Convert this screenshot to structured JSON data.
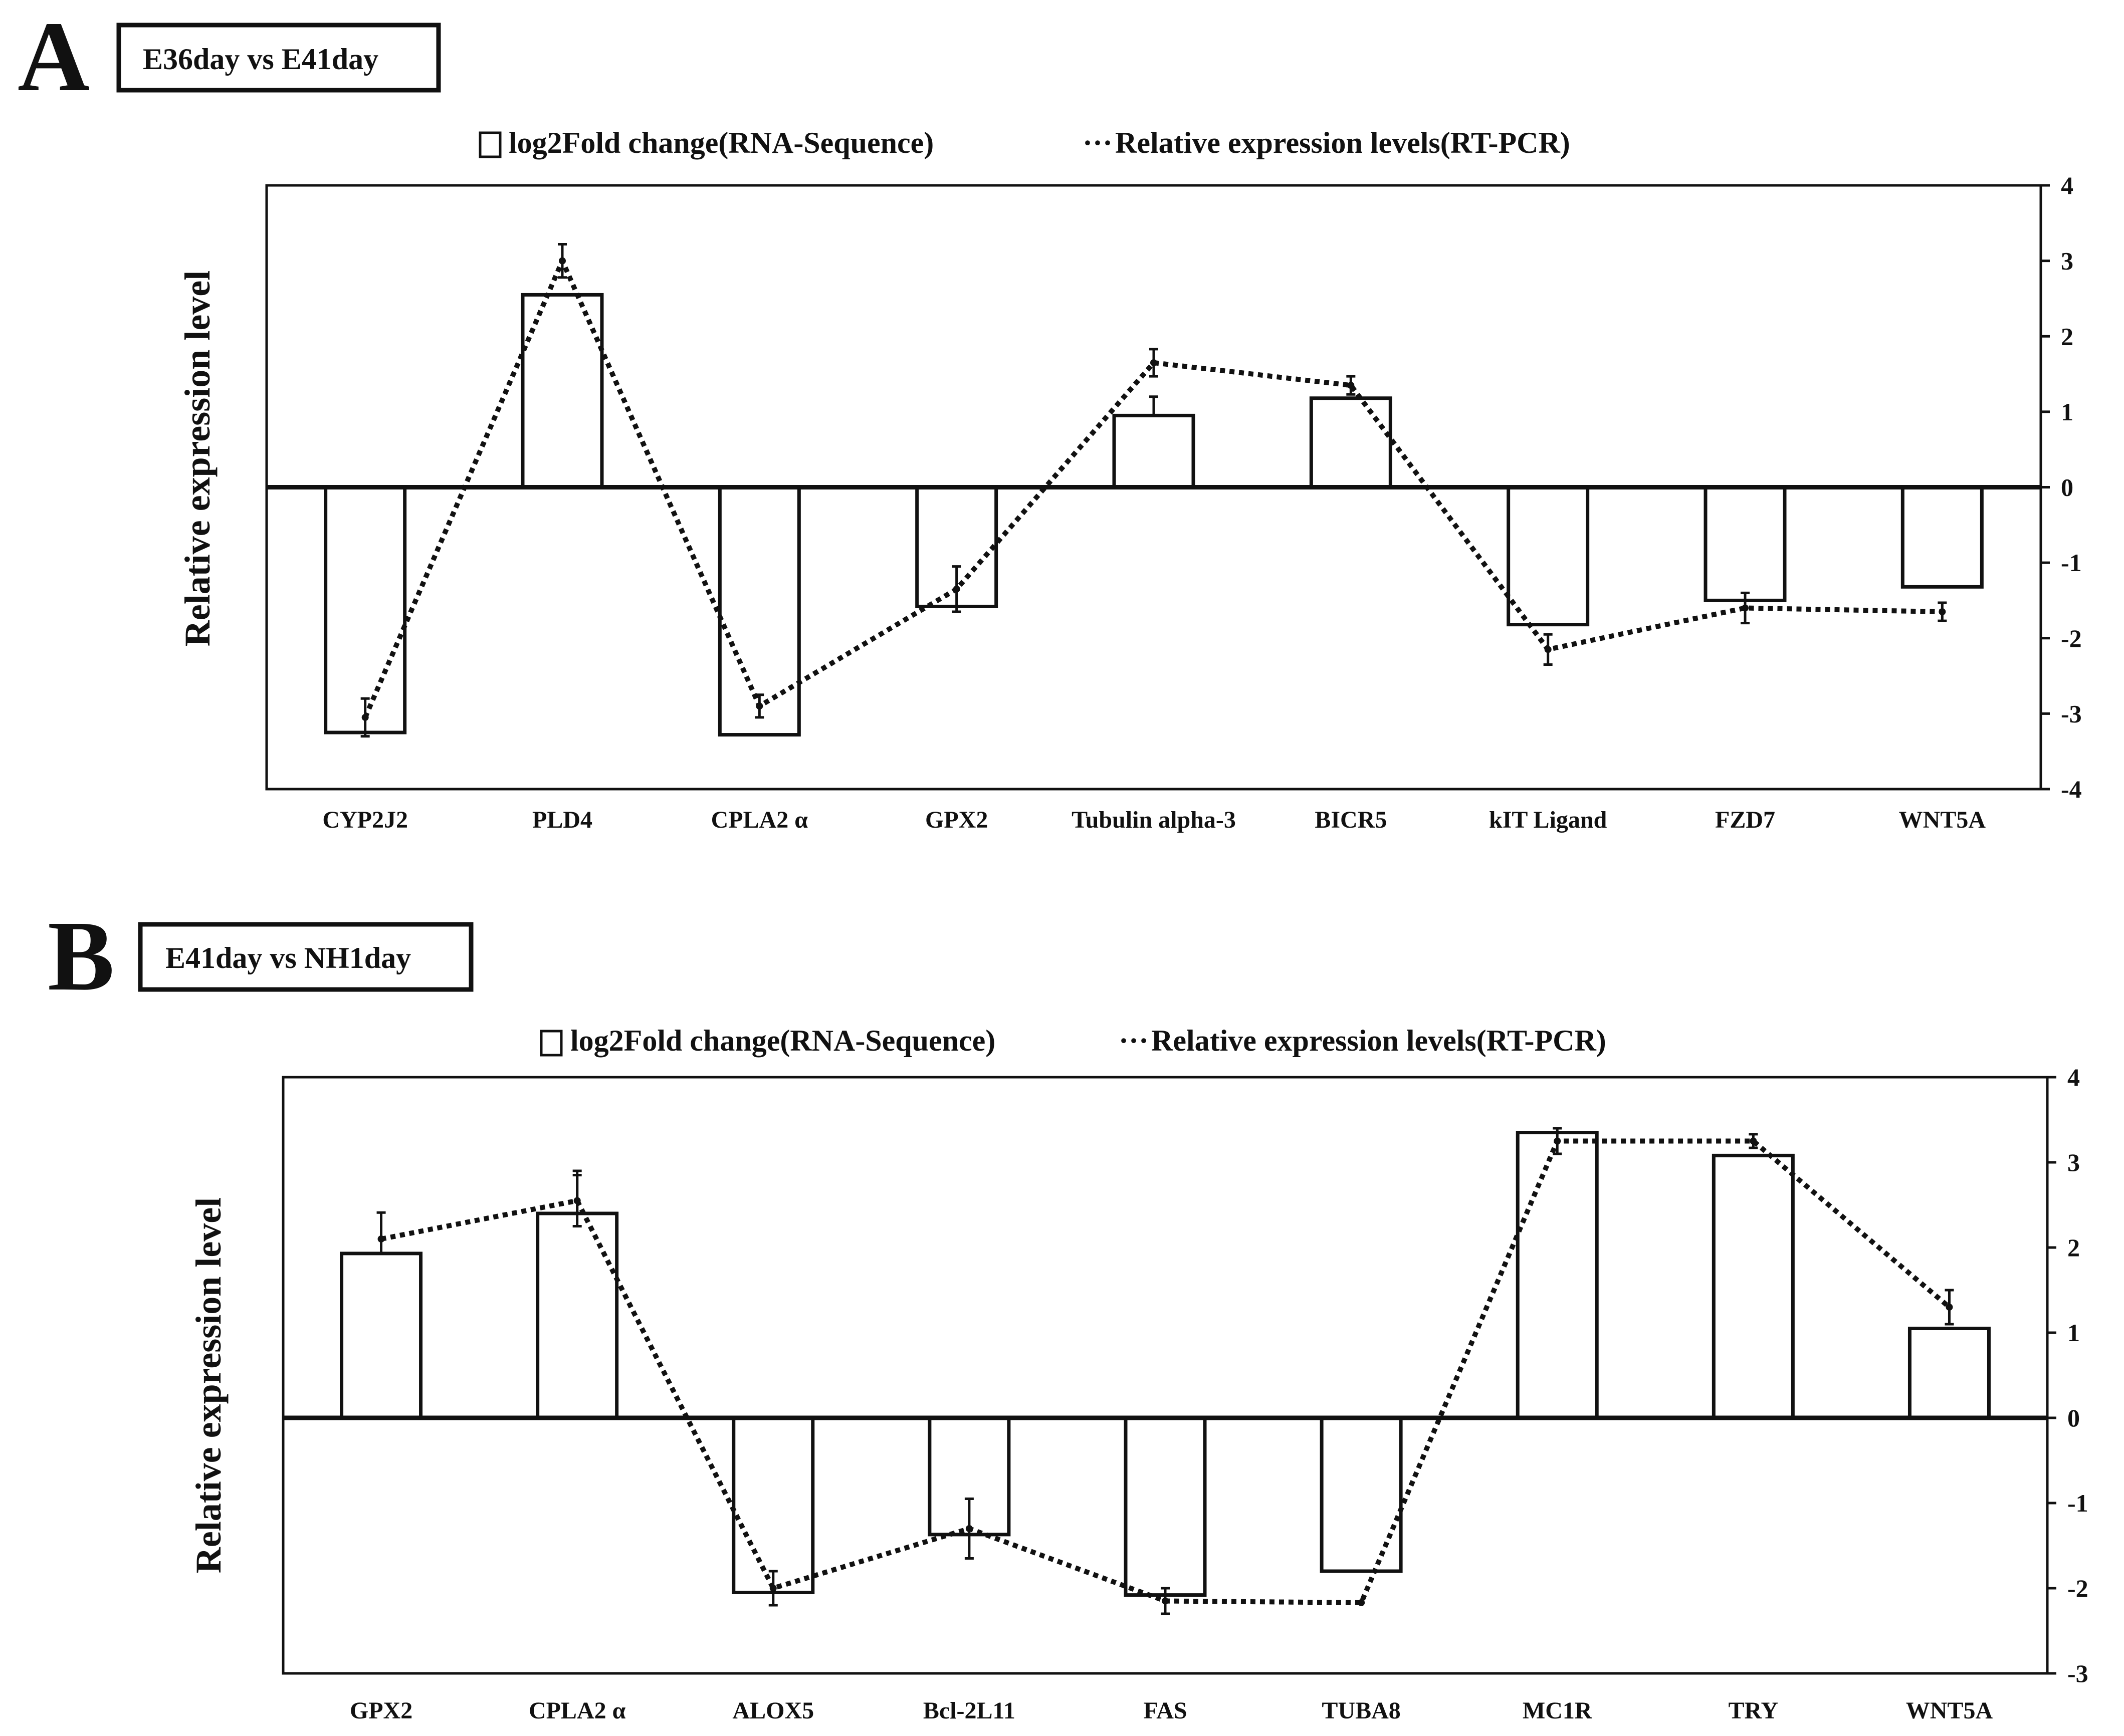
{
  "panels": [
    {
      "panel_letter": "A",
      "comparison_label": "E36day vs E41day",
      "legend": {
        "bars": "log2Fold change(RNA-Sequence)",
        "line_symbol": "···",
        "line": "Relative expression levels(RT-PCR)"
      },
      "colors": {
        "bar_fill": "#ffffff",
        "stroke": "#111111"
      }
    },
    {
      "panel_letter": "B",
      "comparison_label": "E41day vs NH1day",
      "legend": {
        "bars": "log2Fold change(RNA-Sequence)",
        "line_symbol": "···",
        "line": "Relative expression levels(RT-PCR)"
      },
      "colors": {
        "bar_fill": "#ffffff",
        "stroke": "#111111"
      }
    }
  ],
  "chart_data": [
    {
      "type": "bar",
      "title": "E36day vs E41day",
      "ylabel": "Relative expression level",
      "ylim": [
        -4,
        4
      ],
      "yticks": [
        4,
        3,
        2,
        1,
        0,
        -1,
        -2,
        -3,
        -4
      ],
      "axis_side": "right",
      "grid": false,
      "legend_position": "top",
      "categories": [
        "CYP2J2",
        "PLD4",
        "CPLA2 α",
        "GPX2",
        "Tubulin alpha-3",
        "BICR5",
        "kIT Ligand",
        "FZD7",
        "WNT5A"
      ],
      "series": [
        {
          "name": "log2Fold change(RNA-Sequence)",
          "kind": "bar",
          "values": [
            -3.25,
            2.55,
            -3.28,
            -1.58,
            0.95,
            1.18,
            -1.82,
            -1.5,
            -1.32
          ],
          "error": [
            0.0,
            0.0,
            0.0,
            0.0,
            0.25,
            0.0,
            0.0,
            0.0,
            0.0
          ]
        },
        {
          "name": "Relative expression levels(RT-PCR)",
          "kind": "dotted-line",
          "values": [
            -3.05,
            3.0,
            -2.9,
            -1.35,
            1.65,
            1.35,
            -2.15,
            -1.6,
            -1.65
          ],
          "error": [
            0.25,
            0.22,
            0.15,
            0.3,
            0.18,
            0.12,
            0.2,
            0.2,
            0.12
          ]
        }
      ]
    },
    {
      "type": "bar",
      "title": "E41day vs NH1day",
      "ylabel": "Relative expression level",
      "ylim": [
        -3,
        4
      ],
      "yticks": [
        4,
        3,
        2,
        1,
        0,
        -1,
        -2,
        -3
      ],
      "axis_side": "right",
      "grid": false,
      "legend_position": "top",
      "categories": [
        "GPX2",
        "CPLA2 α",
        "ALOX5",
        "Bcl-2L11",
        "FAS",
        "TUBA8",
        "MC1R",
        "TRY",
        "WNT5A"
      ],
      "series": [
        {
          "name": "log2Fold change(RNA-Sequence)",
          "kind": "bar",
          "values": [
            1.93,
            2.4,
            -2.05,
            -1.37,
            -2.08,
            -1.8,
            3.35,
            3.08,
            1.05
          ],
          "error": [
            0.48,
            0.5,
            0.0,
            0.0,
            0.0,
            0.0,
            0.0,
            0.0,
            0.0
          ]
        },
        {
          "name": "Relative expression levels(RT-PCR)",
          "kind": "dotted-line",
          "values": [
            2.1,
            2.55,
            -2.0,
            -1.3,
            -2.15,
            -2.17,
            3.25,
            3.25,
            1.3
          ],
          "error": [
            0.0,
            0.3,
            0.2,
            0.35,
            0.15,
            0.0,
            0.15,
            0.08,
            0.2
          ]
        }
      ]
    }
  ]
}
